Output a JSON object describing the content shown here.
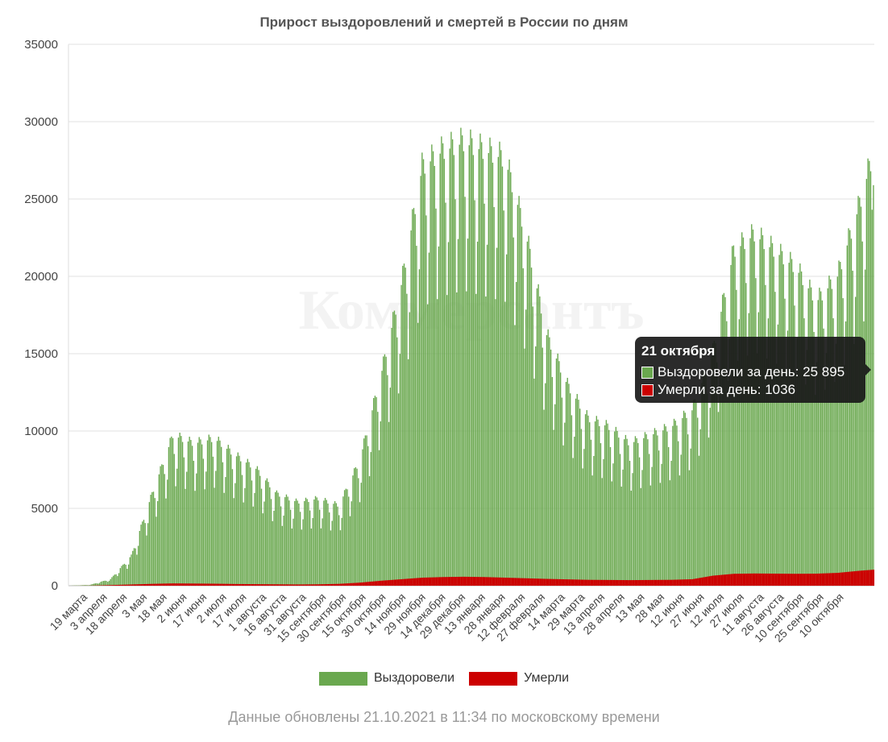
{
  "chart_data": {
    "type": "bar",
    "title": "Прирост выздоровлений и смертей в России по дням",
    "xlabel": "",
    "ylabel": "",
    "ylim": [
      0,
      35000
    ],
    "y_ticks": [
      "0",
      "5000",
      "10000",
      "15000",
      "20000",
      "25000",
      "30000",
      "35000"
    ],
    "x_tick_labels": [
      "19 марта",
      "3 апреля",
      "18 апреля",
      "3 мая",
      "18 мая",
      "2 июня",
      "17 июня",
      "2 июля",
      "17 июля",
      "1 августа",
      "16 августа",
      "31 августа",
      "15 сентября",
      "30 сентября",
      "15 октября",
      "30 октября",
      "14 ноября",
      "29 ноября",
      "14 декабря",
      "29 декабря",
      "13 января",
      "28 января",
      "12 февраля",
      "27 февраля",
      "14 марта",
      "29 марта",
      "13 апреля",
      "28 апреля",
      "13 мая",
      "28 мая",
      "12 июня",
      "27 июня",
      "12 июля",
      "27 июля",
      "11 августа",
      "26 августа",
      "10 сентября",
      "25 сентября",
      "10 октября"
    ],
    "categories": [
      "19 марта",
      "3 апреля",
      "18 апреля",
      "3 мая",
      "18 мая",
      "2 июня",
      "17 июня",
      "2 июля",
      "17 июля",
      "1 августа",
      "16 августа",
      "31 августа",
      "15 сентября",
      "30 сентября",
      "15 октября",
      "30 октября",
      "14 ноября",
      "29 ноября",
      "14 декабря",
      "29 декабря",
      "13 января",
      "28 января",
      "12 февраля",
      "27 февраля",
      "14 марта",
      "29 марта",
      "13 апреля",
      "28 апреля",
      "13 мая",
      "28 мая",
      "12 июня",
      "27 июня",
      "12 июля",
      "27 июля",
      "11 августа",
      "26 августа",
      "10 сентября",
      "25 сентября",
      "10 октября",
      "21 октября"
    ],
    "series": [
      {
        "name": "Выздоровели",
        "color": "#6aa84f",
        "values": [
          0,
          50,
          400,
          1800,
          5500,
          9000,
          8500,
          8800,
          7800,
          7000,
          5500,
          5000,
          5200,
          4800,
          7500,
          12500,
          18000,
          25000,
          26000,
          26500,
          26000,
          25500,
          21000,
          15000,
          12000,
          10000,
          9500,
          8500,
          9000,
          9500,
          10500,
          14000,
          20000,
          21000,
          20000,
          19000,
          17000,
          18500,
          22500,
          25895
        ]
      },
      {
        "name": "Умерли",
        "color": "#cc0000",
        "values": [
          0,
          5,
          40,
          80,
          120,
          150,
          140,
          130,
          110,
          100,
          90,
          80,
          90,
          120,
          200,
          320,
          420,
          520,
          560,
          580,
          560,
          520,
          480,
          440,
          410,
          380,
          370,
          360,
          370,
          380,
          420,
          650,
          770,
          790,
          780,
          770,
          780,
          830,
          960,
          1036
        ]
      }
    ],
    "legend": "bottom-center",
    "grid": true
  },
  "watermark": "Коммерсантъ",
  "tooltip": {
    "title": "21 октября",
    "rows": [
      {
        "label": "Выздоровели за день: 25 895",
        "color": "#6aa84f"
      },
      {
        "label": "Умерли за день: 1036",
        "color": "#cc0000"
      }
    ]
  },
  "legend_items": [
    {
      "label": "Выздоровели",
      "color": "#6aa84f"
    },
    {
      "label": "Умерли",
      "color": "#cc0000"
    }
  ],
  "update_note": "Данные обновлены 21.10.2021 в 11:34 по московскому времени"
}
